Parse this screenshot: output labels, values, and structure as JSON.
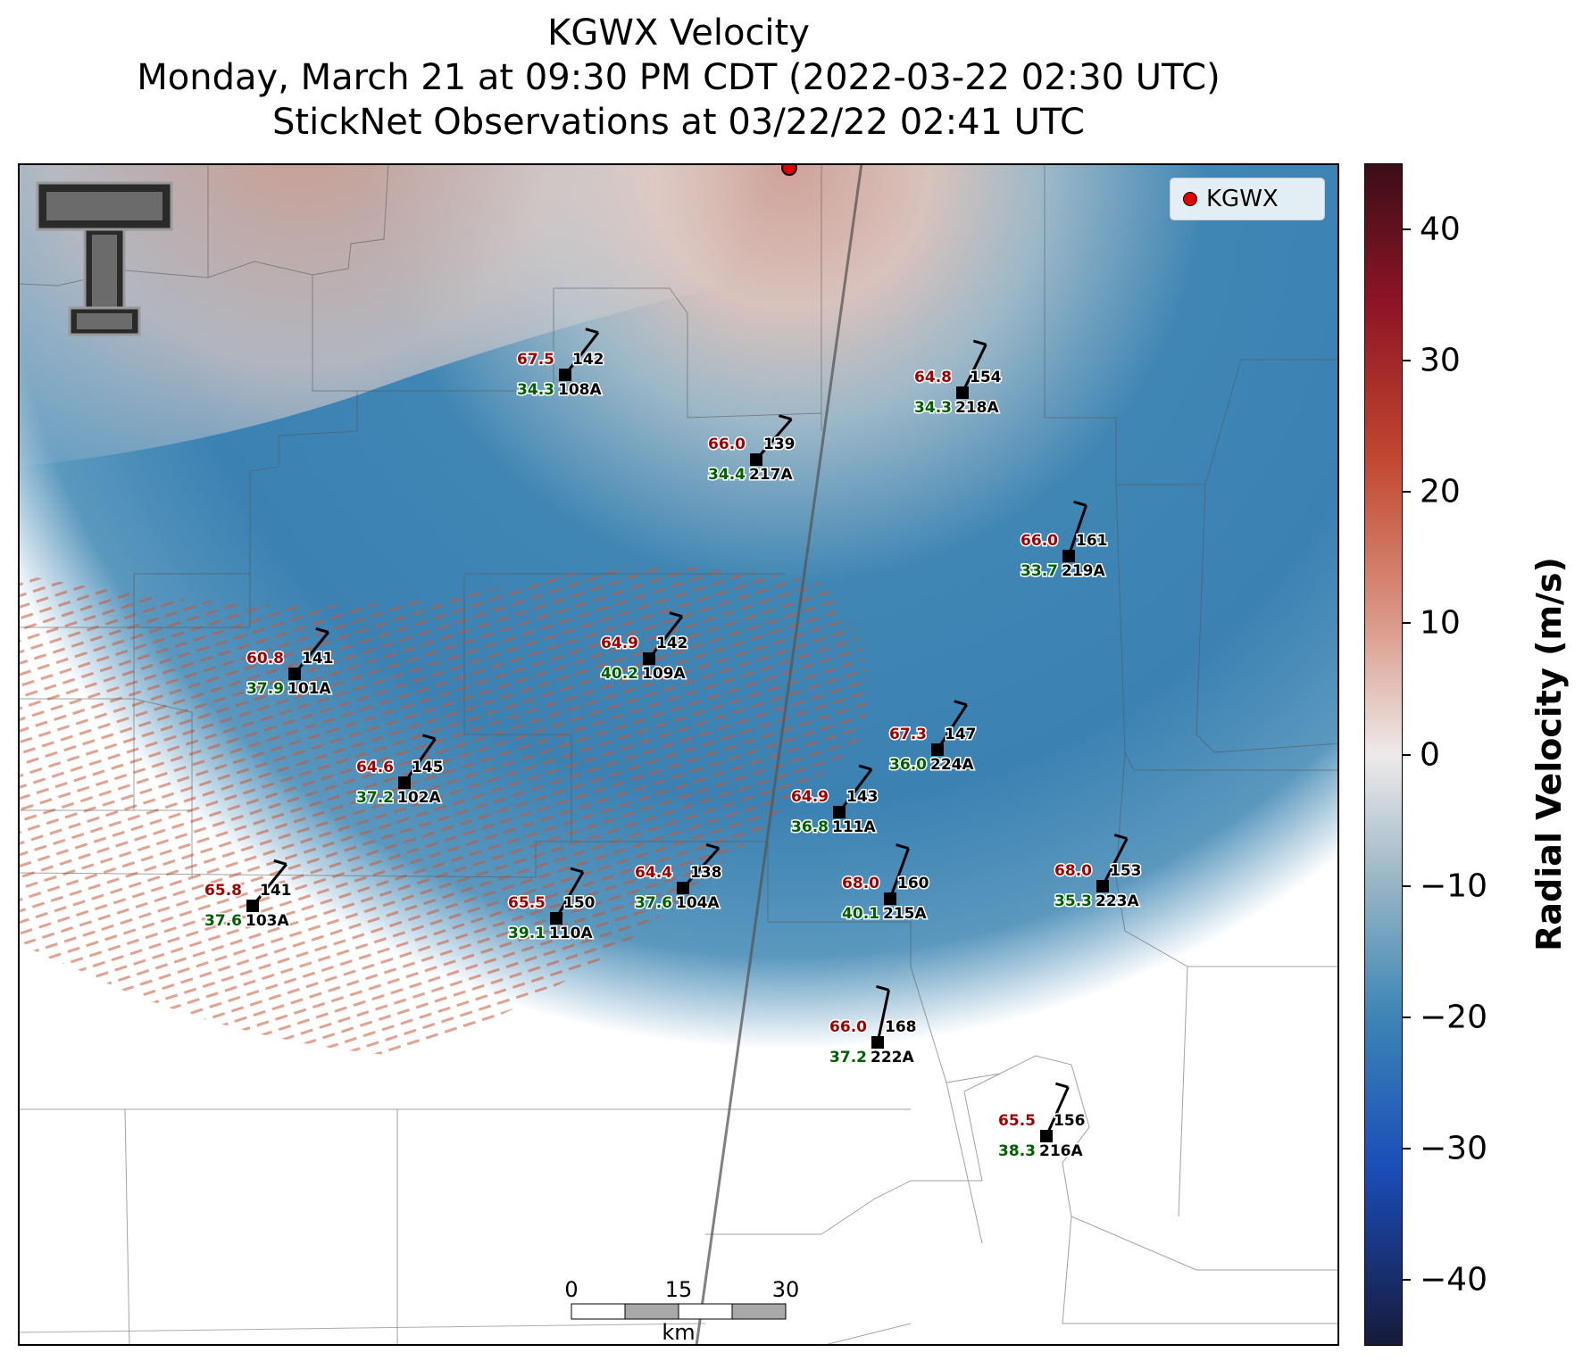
{
  "title": {
    "line1": "KGWX Velocity",
    "line2": "Monday, March 21 at 09:30 PM CDT (2022-03-22 02:30 UTC)",
    "line3": "StickNet Observations at 03/22/22 02:41 UTC"
  },
  "legend": {
    "label": "KGWX",
    "color": "#e00000"
  },
  "colorbar": {
    "label": "Radial Velocity (m/s)",
    "range": [
      -45,
      45
    ],
    "ticks": [
      {
        "value": 40,
        "label": "40"
      },
      {
        "value": 30,
        "label": "30"
      },
      {
        "value": 20,
        "label": "20"
      },
      {
        "value": 10,
        "label": "10"
      },
      {
        "value": 0,
        "label": "0"
      },
      {
        "value": -10,
        "label": "−10"
      },
      {
        "value": -20,
        "label": "−20"
      },
      {
        "value": -30,
        "label": "−30"
      },
      {
        "value": -40,
        "label": "−40"
      }
    ]
  },
  "scalebar": {
    "labels": [
      "0",
      "15",
      "30"
    ],
    "unit": "km"
  },
  "stations": [
    {
      "id": "108A",
      "temp": "67.5",
      "dir": "142",
      "dew": "34.3"
    },
    {
      "id": "218A",
      "temp": "64.8",
      "dir": "154",
      "dew": "34.3"
    },
    {
      "id": "217A",
      "temp": "66.0",
      "dir": "139",
      "dew": "34.4"
    },
    {
      "id": "219A",
      "temp": "66.0",
      "dir": "161",
      "dew": "33.7"
    },
    {
      "id": "101A",
      "temp": "60.8",
      "dir": "141",
      "dew": "37.9"
    },
    {
      "id": "109A",
      "temp": "64.9",
      "dir": "142",
      "dew": "40.2"
    },
    {
      "id": "224A",
      "temp": "67.3",
      "dir": "147",
      "dew": "36.0"
    },
    {
      "id": "102A",
      "temp": "64.6",
      "dir": "145",
      "dew": "37.2"
    },
    {
      "id": "111A",
      "temp": "64.9",
      "dir": "143",
      "dew": "36.8"
    },
    {
      "id": "103A",
      "temp": "65.8",
      "dir": "141",
      "dew": "37.6"
    },
    {
      "id": "104A",
      "temp": "64.4",
      "dir": "138",
      "dew": "37.6"
    },
    {
      "id": "110A",
      "temp": "65.5",
      "dir": "150",
      "dew": "39.1"
    },
    {
      "id": "215A",
      "temp": "68.0",
      "dir": "160",
      "dew": "40.1"
    },
    {
      "id": "223A",
      "temp": "68.0",
      "dir": "153",
      "dew": "35.3"
    },
    {
      "id": "222A",
      "temp": "66.0",
      "dir": "168",
      "dew": "37.2"
    },
    {
      "id": "216A",
      "temp": "65.5",
      "dir": "156",
      "dew": "38.3"
    }
  ]
}
